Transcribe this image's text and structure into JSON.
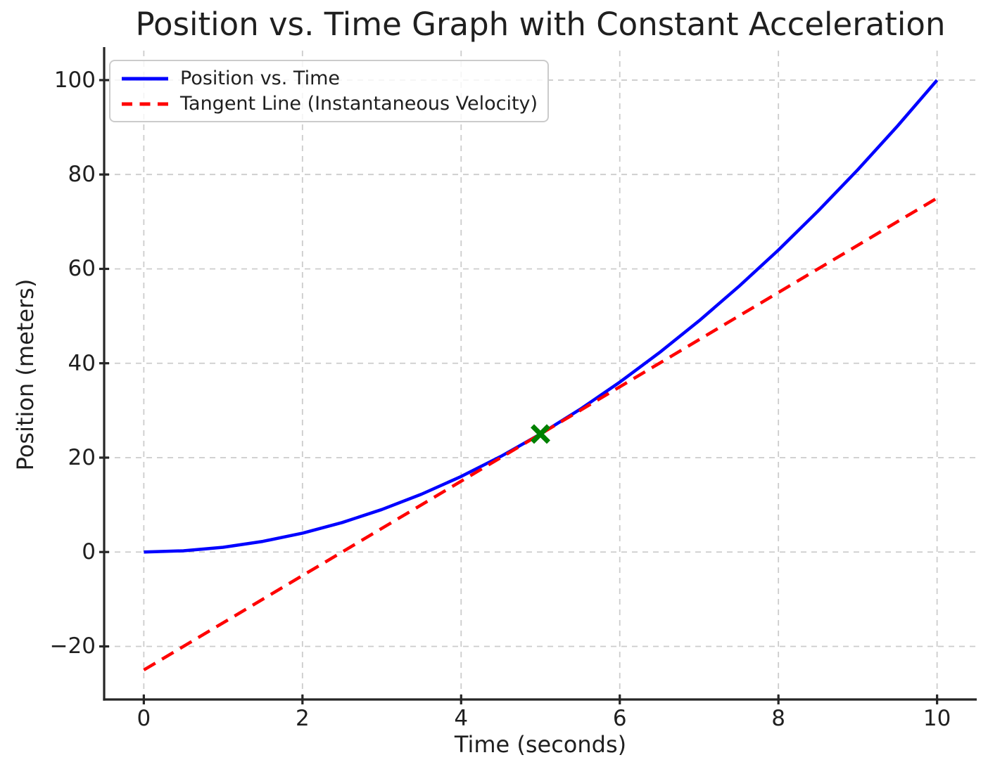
{
  "page": {
    "background": "#ffffff",
    "text_color": "#1f1f1f"
  },
  "chart_data": {
    "type": "line",
    "title": "Position vs. Time Graph with Constant Acceleration",
    "xlabel": "Time (seconds)",
    "ylabel": "Position (meters)",
    "xlim": [
      -0.5,
      10.5
    ],
    "ylim": [
      -31.25,
      106.25
    ],
    "xticks": [
      0,
      2,
      4,
      6,
      8,
      10
    ],
    "xtick_labels": [
      "0",
      "2",
      "4",
      "6",
      "8",
      "10"
    ],
    "yticks": [
      -20,
      0,
      20,
      40,
      60,
      80,
      100
    ],
    "ytick_labels": [
      "−20",
      "0",
      "20",
      "40",
      "60",
      "80",
      "100"
    ],
    "grid": true,
    "grid_color": "#cccccc",
    "legend_position": "upper left",
    "series": [
      {
        "name": "Position vs. Time",
        "style": "solid",
        "color": "#0000ff",
        "x": [
          0,
          0.5,
          1,
          1.5,
          2,
          2.5,
          3,
          3.5,
          4,
          4.5,
          5,
          5.5,
          6,
          6.5,
          7,
          7.5,
          8,
          8.5,
          9,
          9.5,
          10
        ],
        "y": [
          0,
          0.25,
          1,
          2.25,
          4,
          6.25,
          9,
          12.25,
          16,
          20.25,
          25,
          30.25,
          36,
          42.25,
          49,
          56.25,
          64,
          72.25,
          81,
          90.25,
          100
        ]
      },
      {
        "name": "Tangent Line (Instantaneous Velocity)",
        "style": "dashed",
        "color": "#ff0000",
        "x": [
          0,
          10
        ],
        "y": [
          -25,
          75
        ]
      }
    ],
    "annotations": [
      {
        "type": "marker",
        "shape": "x",
        "x": 5,
        "y": 25,
        "color": "#008000"
      }
    ]
  }
}
